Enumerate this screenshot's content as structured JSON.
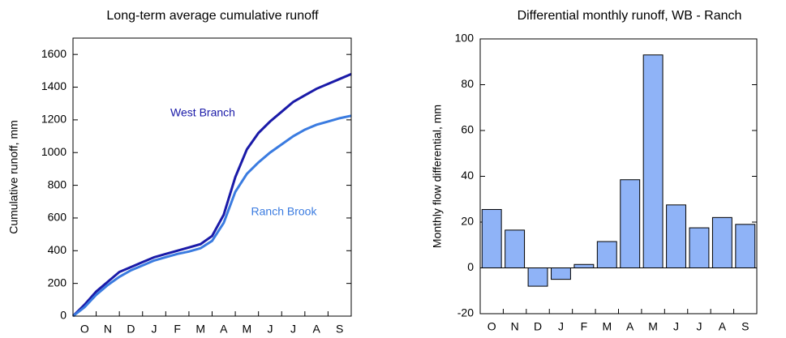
{
  "chart_data": [
    {
      "type": "line",
      "title": "Long-term average cumulative runoff",
      "y_label": "Cumulative runoff, mm",
      "categories": [
        "O",
        "N",
        "D",
        "J",
        "F",
        "M",
        "A",
        "M",
        "J",
        "J",
        "A",
        "S"
      ],
      "x": [
        0,
        0.5,
        1,
        1.5,
        2,
        2.5,
        3,
        3.5,
        4,
        4.5,
        5,
        5.5,
        6,
        6.5,
        7,
        7.5,
        8,
        8.5,
        9,
        9.5,
        10,
        10.5,
        11,
        11.5,
        12
      ],
      "xlim": [
        0,
        12
      ],
      "ylim": [
        0,
        1700
      ],
      "yticks": [
        0,
        200,
        400,
        600,
        800,
        1000,
        1200,
        1400,
        1600
      ],
      "series": [
        {
          "name": "West Branch",
          "color": "#1a1aa8",
          "values": [
            0,
            70,
            150,
            210,
            270,
            300,
            330,
            360,
            380,
            400,
            420,
            440,
            490,
            620,
            850,
            1020,
            1120,
            1190,
            1250,
            1310,
            1350,
            1390,
            1420,
            1450,
            1480
          ]
        },
        {
          "name": "Ranch Brook",
          "color": "#3a7be0",
          "values": [
            0,
            55,
            130,
            190,
            240,
            280,
            310,
            340,
            360,
            380,
            395,
            415,
            460,
            570,
            760,
            870,
            940,
            1000,
            1050,
            1100,
            1140,
            1170,
            1190,
            1210,
            1225
          ]
        }
      ]
    },
    {
      "type": "bar",
      "title": "Differential monthly runoff, WB - Ranch",
      "y_label": "Monthly flow differential, mm",
      "categories": [
        "O",
        "N",
        "D",
        "J",
        "F",
        "M",
        "A",
        "M",
        "J",
        "J",
        "A",
        "S"
      ],
      "values": [
        25.5,
        16.5,
        -8,
        -5,
        1.5,
        11.5,
        38.5,
        93,
        27.5,
        17.5,
        22,
        19
      ],
      "color": "#8fb3f7",
      "ylim": [
        -20,
        100
      ],
      "yticks": [
        -20,
        0,
        20,
        40,
        60,
        80,
        100
      ]
    }
  ]
}
